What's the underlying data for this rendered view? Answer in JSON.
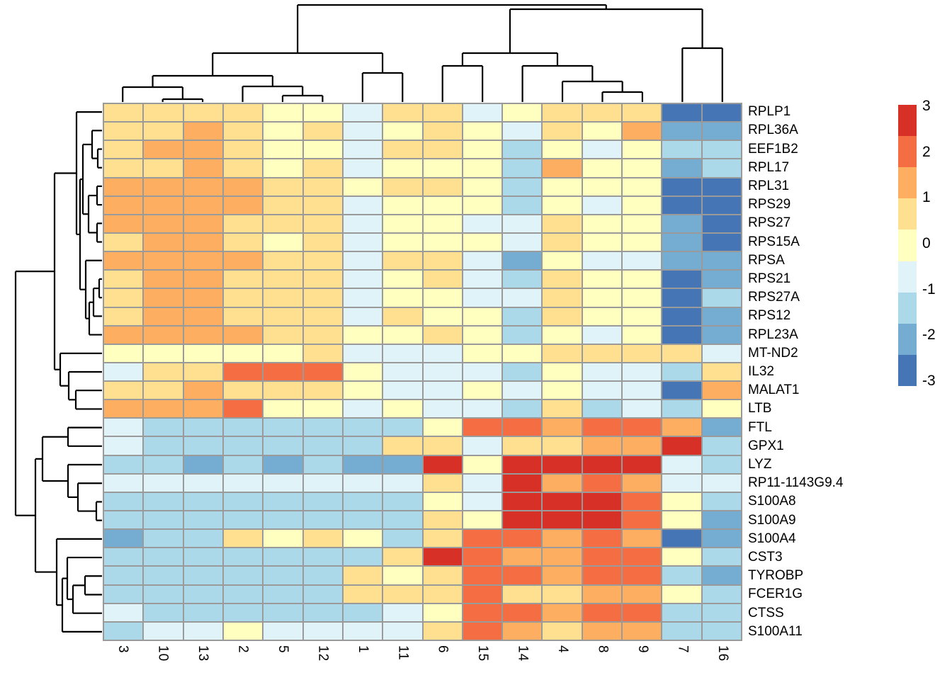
{
  "chart_data": {
    "type": "heatmap",
    "title": "",
    "columns": [
      "3",
      "10",
      "13",
      "2",
      "5",
      "12",
      "1",
      "11",
      "6",
      "15",
      "14",
      "4",
      "8",
      "9",
      "7",
      "16"
    ],
    "rows": [
      "RPLP1",
      "RPL36A",
      "EEF1B2",
      "RPL17",
      "RPL31",
      "RPS29",
      "RPS27",
      "RPS15A",
      "RPSA",
      "RPS21",
      "RPS27A",
      "RPS12",
      "RPL23A",
      "MT-ND2",
      "IL32",
      "MALAT1",
      "LTB",
      "FTL",
      "GPX1",
      "LYZ",
      "RP11-1143G9.4",
      "S100A8",
      "S100A9",
      "S100A4",
      "CST3",
      "TYROBP",
      "FCER1G",
      "CTSS",
      "S100A11"
    ],
    "values": [
      [
        0.7,
        0.7,
        0.7,
        0.7,
        0,
        0,
        -0.7,
        0.7,
        0.7,
        -0.7,
        0,
        0.7,
        0.7,
        0.7,
        -2.7,
        -2.7
      ],
      [
        0.7,
        0.7,
        1.3,
        0.7,
        0,
        0.7,
        -0.7,
        0,
        0.7,
        0,
        -0.7,
        0.7,
        0,
        1.3,
        -2,
        -2
      ],
      [
        0.7,
        1.3,
        1.3,
        0.7,
        0,
        0,
        -0.7,
        0.7,
        0.7,
        0,
        -1.3,
        0,
        -0.7,
        0,
        -1.3,
        -1.3
      ],
      [
        0.7,
        0.7,
        1.3,
        0.7,
        0,
        0.7,
        -0.7,
        0,
        0,
        0,
        -1.3,
        1.3,
        0,
        0,
        -2,
        -1.3
      ],
      [
        1.3,
        1.3,
        1.3,
        1.3,
        0.7,
        0.7,
        0,
        0.7,
        0.7,
        0,
        -1.3,
        0,
        0,
        0,
        -2.7,
        -2.7
      ],
      [
        1.3,
        1.3,
        1.3,
        1.3,
        0.7,
        0.7,
        -0.7,
        0,
        0,
        0,
        -1.3,
        0,
        -0.7,
        0,
        -2.7,
        -2.7
      ],
      [
        1.3,
        1.3,
        1.3,
        0.7,
        0.7,
        0.7,
        -0.7,
        0,
        0,
        -0.7,
        -0.7,
        0.7,
        0,
        0,
        -2,
        -2.7
      ],
      [
        0.7,
        1.3,
        1.3,
        0.7,
        0,
        0.7,
        -0.7,
        0,
        0,
        0,
        -0.7,
        0.7,
        0,
        0,
        -2,
        -2.7
      ],
      [
        1.3,
        1.3,
        1.3,
        1.3,
        0.7,
        0.7,
        -0.7,
        0.7,
        0.7,
        -0.7,
        -2,
        0,
        -0.7,
        -0.7,
        -2,
        -2
      ],
      [
        0.7,
        1.3,
        1.3,
        0.7,
        0.7,
        0.7,
        -0.7,
        0,
        0.7,
        -0.7,
        -1.3,
        0.7,
        0,
        0,
        -2.7,
        -2
      ],
      [
        0.7,
        1.3,
        1.3,
        0.7,
        0.7,
        0.7,
        -0.7,
        0,
        0,
        -0.7,
        -0.7,
        0.7,
        0,
        0,
        -2.7,
        -1.3
      ],
      [
        0.7,
        1.3,
        1.3,
        0.7,
        0.7,
        0.7,
        -0.7,
        0.7,
        0,
        0,
        -1.3,
        0.7,
        0,
        0,
        -2.7,
        -2
      ],
      [
        1.3,
        1.3,
        1.3,
        1.3,
        0.7,
        0.7,
        0,
        0,
        0.7,
        0,
        -1.3,
        0,
        -0.7,
        0,
        -2.7,
        -2
      ],
      [
        0,
        0,
        0,
        0,
        0,
        0.7,
        -0.7,
        -0.7,
        -0.7,
        0,
        0,
        0.7,
        0.7,
        0.7,
        0.7,
        -0.7
      ],
      [
        -0.7,
        0.7,
        0.7,
        2,
        2,
        2,
        0,
        -0.7,
        -0.7,
        -0.7,
        -1.3,
        0,
        -0.7,
        -0.7,
        -1.3,
        0.7
      ],
      [
        0.7,
        0.7,
        1.3,
        0.7,
        0.7,
        0.7,
        0,
        -0.7,
        -0.7,
        0,
        -0.7,
        0,
        -0.7,
        -0.7,
        -2.7,
        1.3
      ],
      [
        1.3,
        1.3,
        1.3,
        2,
        0,
        0,
        -0.7,
        0,
        -0.7,
        -0.7,
        -1.3,
        0.7,
        -1.3,
        -0.7,
        -1.3,
        0
      ],
      [
        -0.7,
        -1.3,
        -1.3,
        -1.3,
        -1.3,
        -1.3,
        -1.3,
        -1.3,
        0,
        2,
        2,
        1.3,
        2,
        2,
        1.3,
        -2
      ],
      [
        -0.7,
        -1.3,
        -1.3,
        -1.3,
        -1.3,
        -1.3,
        -1.3,
        0.7,
        0.7,
        -0.7,
        0.7,
        0.7,
        1.3,
        1.3,
        2.7,
        -1.3
      ],
      [
        -1.3,
        -1.3,
        -2,
        -1.3,
        -2,
        -1.3,
        -2,
        -2,
        2.7,
        0,
        2.7,
        2.7,
        2.7,
        2.7,
        -0.7,
        -1.3
      ],
      [
        -0.7,
        -0.7,
        -0.7,
        -0.7,
        -0.7,
        -0.7,
        -0.7,
        -0.7,
        0.7,
        -0.7,
        2.7,
        1.3,
        2,
        1.3,
        -0.7,
        -0.7
      ],
      [
        -1.3,
        -1.3,
        -1.3,
        -1.3,
        -1.3,
        -1.3,
        -1.3,
        -1.3,
        0,
        -0.7,
        2.7,
        2.7,
        2.7,
        2,
        0,
        -1.3
      ],
      [
        -1.3,
        -1.3,
        -1.3,
        -1.3,
        -1.3,
        -1.3,
        -1.3,
        -1.3,
        0.7,
        0,
        2.7,
        2.7,
        2.7,
        2,
        0,
        -2
      ],
      [
        -2,
        -1.3,
        -1.3,
        0.7,
        0,
        0.7,
        0,
        -1.3,
        0.7,
        2,
        2,
        1.3,
        2,
        1.3,
        -2.7,
        -2
      ],
      [
        -1.3,
        -1.3,
        -1.3,
        -1.3,
        -1.3,
        -1.3,
        -1.3,
        0.7,
        2.7,
        2,
        1.3,
        1.3,
        2,
        2,
        0,
        -1.3
      ],
      [
        -1.3,
        -1.3,
        -1.3,
        -1.3,
        -1.3,
        -1.3,
        0.7,
        0,
        0.7,
        2,
        2,
        1.3,
        2,
        2,
        -1.3,
        -2
      ],
      [
        -1.3,
        -1.3,
        -1.3,
        -1.3,
        -1.3,
        -1.3,
        0.7,
        0.7,
        0.7,
        2,
        0.7,
        0.7,
        1.3,
        1.3,
        0,
        -1.3
      ],
      [
        -0.7,
        -1.3,
        -1.3,
        -1.3,
        -1.3,
        -1.3,
        -1.3,
        -0.7,
        0,
        2,
        2,
        1.3,
        2,
        2,
        -1.3,
        -1.3
      ],
      [
        -1.3,
        -0.7,
        -0.7,
        0,
        -0.7,
        -0.7,
        -0.7,
        -0.7,
        0.7,
        2,
        1.3,
        0.7,
        1.3,
        1.3,
        -1.3,
        -1.3
      ]
    ],
    "palette": {
      "colors_low_to_high": [
        "#4575b4",
        "#74add1",
        "#abd9e9",
        "#e0f3f8",
        "#ffffbf",
        "#fee090",
        "#fdae61",
        "#f46d43",
        "#d73027"
      ],
      "domain": [
        -3,
        3
      ]
    },
    "legend": {
      "ticks": [
        3,
        2,
        1,
        0,
        -1,
        -2,
        -3
      ]
    },
    "grid_line_color": "#9a9a9a",
    "col_dendrogram": {
      "merges": [
        [
          "L4",
          "L5",
          135
        ],
        [
          "L3",
          "M0",
          122
        ],
        [
          "L1",
          "L2",
          140
        ],
        [
          "L0",
          "M2",
          123
        ],
        [
          "M3",
          "M1",
          107
        ],
        [
          "L6",
          "L7",
          103
        ],
        [
          "M4",
          "M5",
          75
        ],
        [
          "L12",
          "L13",
          130
        ],
        [
          "L11",
          "M7",
          115
        ],
        [
          "L10",
          "M8",
          93
        ],
        [
          "L8",
          "L9",
          93
        ],
        [
          "M10",
          "M9",
          75
        ],
        [
          "L14",
          "L15",
          68
        ],
        [
          "M11",
          "M12",
          13
        ],
        [
          "M6",
          "M13",
          7
        ]
      ]
    },
    "row_dendrogram": {
      "merges": [
        [
          "L2",
          "L3",
          138
        ],
        [
          "L1",
          "M0",
          130
        ],
        [
          "L4",
          "L5",
          137
        ],
        [
          "L6",
          "L7",
          137
        ],
        [
          "M2",
          "M3",
          125
        ],
        [
          "M1",
          "M4",
          117
        ],
        [
          "L9",
          "L10",
          140
        ],
        [
          "M6",
          "L11",
          132
        ],
        [
          "M7",
          "L12",
          126
        ],
        [
          "L8",
          "M8",
          121
        ],
        [
          "M5",
          "M9",
          113
        ],
        [
          "L0",
          "M10",
          108
        ],
        [
          "L15",
          "L16",
          107
        ],
        [
          "L14",
          "M12",
          97
        ],
        [
          "L13",
          "M13",
          85
        ],
        [
          "M11",
          "M14",
          77
        ],
        [
          "L17",
          "L18",
          96
        ],
        [
          "L21",
          "L22",
          136
        ],
        [
          "L20",
          "M17",
          110
        ],
        [
          "L19",
          "M18",
          96
        ],
        [
          "M16",
          "M19",
          60
        ],
        [
          "L25",
          "L26",
          120
        ],
        [
          "M21",
          "L27",
          103
        ],
        [
          "L24",
          "M22",
          95
        ],
        [
          "M23",
          "L28",
          88
        ],
        [
          "L23",
          "M24",
          80
        ],
        [
          "M20",
          "M25",
          50
        ],
        [
          "M15",
          "M26",
          22
        ]
      ]
    }
  }
}
